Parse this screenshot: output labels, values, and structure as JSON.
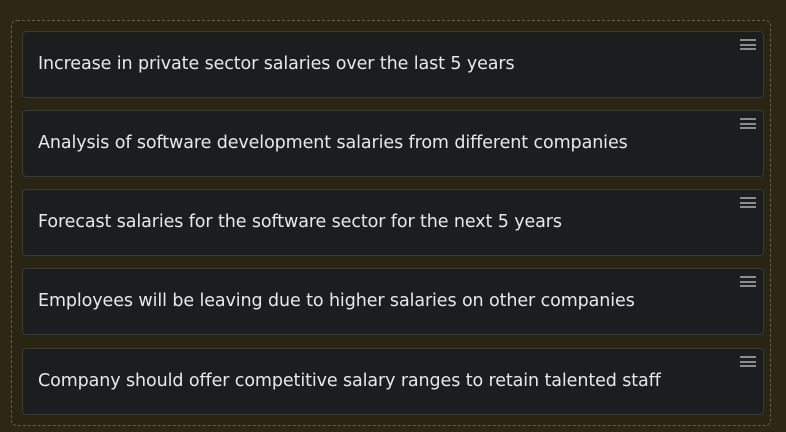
{
  "sortable_list": {
    "items": [
      {
        "label": "Increase in private sector salaries over the last 5 years",
        "handle_icon": "drag-handle-icon"
      },
      {
        "label": "Analysis of software development salaries from different companies",
        "handle_icon": "drag-handle-icon"
      },
      {
        "label": "Forecast salaries for the software sector for the next 5 years",
        "handle_icon": "drag-handle-icon"
      },
      {
        "label": "Employees will be leaving due to higher salaries on other companies",
        "handle_icon": "drag-handle-icon"
      },
      {
        "label": "Company should offer competitive salary ranges to retain talented staff",
        "handle_icon": "drag-handle-icon"
      }
    ]
  },
  "colors": {
    "background": "#2e2714",
    "card_background": "#1c1d1f",
    "card_text": "#e8e8e6",
    "dashed_border": "#6b6038",
    "handle": "#8c8c8c"
  }
}
